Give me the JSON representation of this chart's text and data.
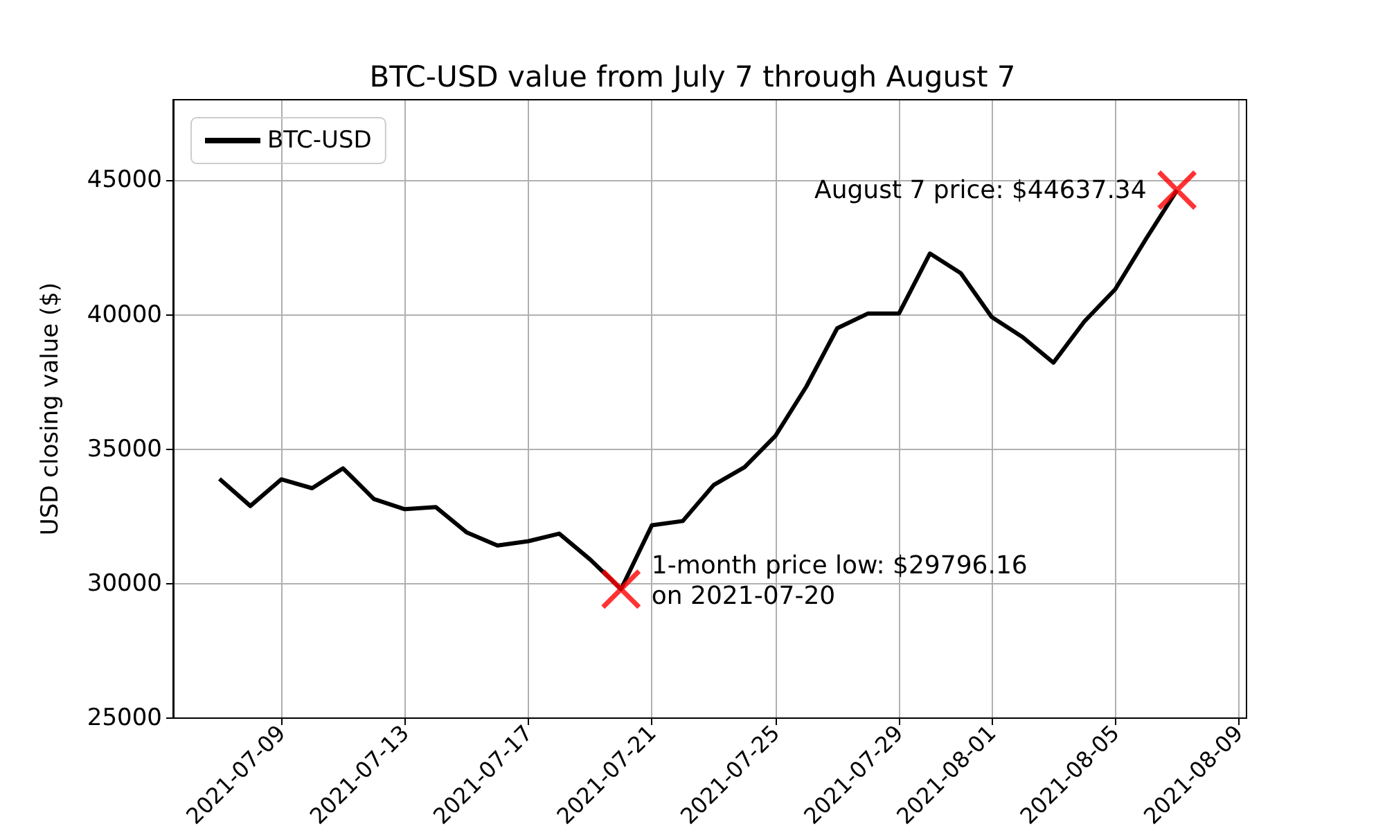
{
  "chart_data": {
    "type": "line",
    "title": "BTC-USD value from July 7 through August 7",
    "ylabel": "USD closing value ($)",
    "x": [
      "2021-07-07",
      "2021-07-08",
      "2021-07-09",
      "2021-07-10",
      "2021-07-11",
      "2021-07-12",
      "2021-07-13",
      "2021-07-14",
      "2021-07-15",
      "2021-07-16",
      "2021-07-17",
      "2021-07-18",
      "2021-07-19",
      "2021-07-20",
      "2021-07-21",
      "2021-07-22",
      "2021-07-23",
      "2021-07-24",
      "2021-07-25",
      "2021-07-26",
      "2021-07-27",
      "2021-07-28",
      "2021-07-29",
      "2021-07-30",
      "2021-07-31",
      "2021-08-01",
      "2021-08-02",
      "2021-08-03",
      "2021-08-04",
      "2021-08-05",
      "2021-08-06",
      "2021-08-07"
    ],
    "series": [
      {
        "name": "BTC-USD",
        "color": "#000000",
        "values": [
          33900,
          32890,
          33880,
          33550,
          34290,
          33150,
          32770,
          32850,
          31910,
          31420,
          31580,
          31860,
          30900,
          29796.16,
          32170,
          32330,
          33670,
          34330,
          35500,
          37330,
          39500,
          40050,
          40050,
          42280,
          41550,
          39920,
          39170,
          38220,
          39750,
          40950,
          42830,
          44637.34
        ]
      },
      {
        "type": "scatter",
        "marker": "cross",
        "color": "#ff0000",
        "x": [
          "2021-07-20",
          "2021-08-07"
        ],
        "values": [
          29796.16,
          44637.34
        ]
      }
    ],
    "annotations": [
      {
        "text": "1-month price low: $29796.16\non 2021-07-20",
        "x": "2021-07-20",
        "y": 29796.16
      },
      {
        "text": "August 7 price: $44637.34",
        "x": "2021-08-07",
        "y": 44637.34
      }
    ],
    "xlim": [
      "2021-07-05T12:00",
      "2021-08-09T06:00"
    ],
    "xticks": [
      {
        "value": "2021-07-09",
        "label": "2021-07-09"
      },
      {
        "value": "2021-07-13",
        "label": "2021-07-13"
      },
      {
        "value": "2021-07-17",
        "label": "2021-07-17"
      },
      {
        "value": "2021-07-21",
        "label": "2021-07-21"
      },
      {
        "value": "2021-07-25",
        "label": "2021-07-25"
      },
      {
        "value": "2021-07-29",
        "label": "2021-07-29"
      },
      {
        "value": "2021-08-01",
        "label": "2021-08-01"
      },
      {
        "value": "2021-08-05",
        "label": "2021-08-05"
      },
      {
        "value": "2021-08-09",
        "label": "2021-08-09"
      }
    ],
    "ylim": [
      25000,
      48000
    ],
    "yticks": [
      25000,
      30000,
      35000,
      40000,
      45000
    ],
    "grid": true,
    "legend": "top left",
    "marker": "none",
    "line_style": "solid"
  }
}
